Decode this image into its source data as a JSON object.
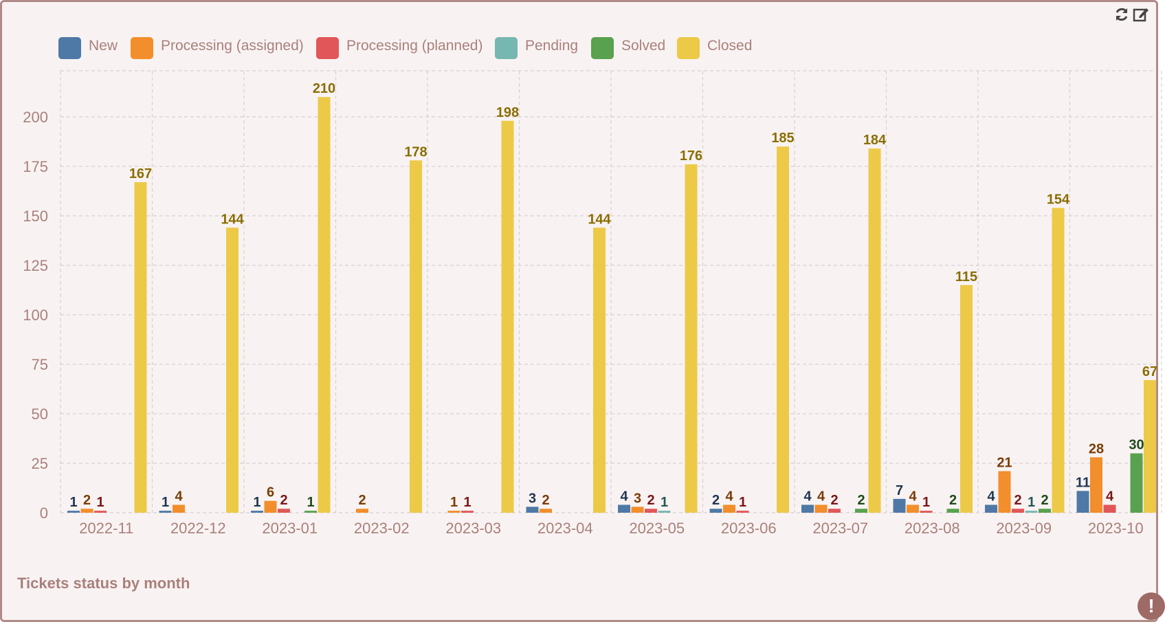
{
  "widget": {
    "caption": "Tickets status by month",
    "tools": [
      {
        "name": "refresh-icon",
        "glyph": "⟳"
      },
      {
        "name": "edit-icon",
        "glyph": "✎"
      }
    ],
    "alert_glyph": "!"
  },
  "chart_data": {
    "type": "bar",
    "title": "",
    "xlabel": "",
    "ylabel": "",
    "ylim": [
      0,
      225
    ],
    "yticks": [
      0,
      25,
      50,
      75,
      100,
      125,
      150,
      175,
      200
    ],
    "grid": true,
    "legend_position": "top-left",
    "categories": [
      "2022-11",
      "2022-12",
      "2023-01",
      "2023-02",
      "2023-03",
      "2023-04",
      "2023-05",
      "2023-06",
      "2023-07",
      "2023-08",
      "2023-09",
      "2023-10"
    ],
    "series": [
      {
        "name": "New",
        "color": "#4e79a7",
        "label_color": "#1f3553",
        "values": [
          1,
          1,
          1,
          null,
          null,
          3,
          4,
          2,
          4,
          7,
          4,
          11
        ]
      },
      {
        "name": "Processing (assigned)",
        "color": "#f28e2b",
        "label_color": "#7a3c06",
        "values": [
          2,
          4,
          6,
          2,
          1,
          2,
          3,
          4,
          4,
          4,
          21,
          28
        ]
      },
      {
        "name": "Processing (planned)",
        "color": "#e15759",
        "label_color": "#7a1518",
        "values": [
          1,
          null,
          2,
          null,
          1,
          null,
          2,
          1,
          2,
          1,
          2,
          4
        ]
      },
      {
        "name": "Pending",
        "color": "#76b7b2",
        "label_color": "#245754",
        "values": [
          null,
          null,
          null,
          null,
          null,
          null,
          1,
          null,
          null,
          null,
          1,
          null
        ]
      },
      {
        "name": "Solved",
        "color": "#59a14f",
        "label_color": "#1e4a1a",
        "values": [
          null,
          null,
          1,
          null,
          null,
          null,
          null,
          null,
          2,
          2,
          2,
          30
        ]
      },
      {
        "name": "Closed",
        "color": "#edc948",
        "label_color": "#8a6d00",
        "values": [
          167,
          144,
          210,
          178,
          198,
          144,
          176,
          185,
          184,
          115,
          154,
          67
        ]
      }
    ]
  }
}
